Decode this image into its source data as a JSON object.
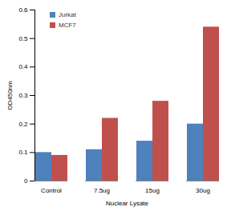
{
  "chart_data": {
    "type": "bar",
    "categories": [
      "Control",
      "7.5ug",
      "15ug",
      "30ug"
    ],
    "series": [
      {
        "name": "Jurkat",
        "color": "#4f81bd",
        "values": [
          0.1,
          0.11,
          0.14,
          0.2
        ]
      },
      {
        "name": "MCF7",
        "color": "#c0504d",
        "values": [
          0.09,
          0.22,
          0.28,
          0.54
        ]
      }
    ],
    "x_label": "Nuclear Lysate",
    "y_label": "OD450nm",
    "ylim": [
      0,
      0.6
    ],
    "yticks": [
      0,
      0.1,
      0.2,
      0.3,
      0.4,
      0.5,
      0.6
    ],
    "grid": false,
    "legend": "top-left"
  }
}
